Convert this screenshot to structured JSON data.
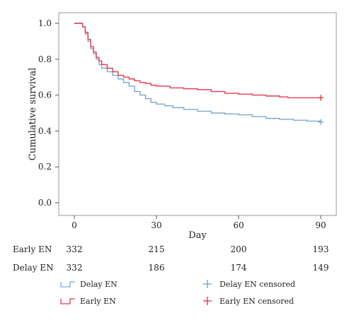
{
  "chart_data": {
    "type": "line",
    "chart_kind": "kaplan-meier",
    "xlabel": "Day",
    "ylabel": "Cumulative survival",
    "xlim": [
      0,
      90
    ],
    "ylim": [
      0,
      1.0
    ],
    "xticks": [
      0,
      30,
      60,
      90
    ],
    "yticks": [
      0.0,
      0.2,
      0.4,
      0.6,
      0.8,
      1.0
    ],
    "ytick_labels": [
      "0.0",
      "0.2",
      "0.4",
      "0.6",
      "0.8",
      "1.0"
    ],
    "grid": false,
    "series": [
      {
        "name": "Delay EN",
        "color": "#7ba7cf",
        "x": [
          0,
          3,
          4,
          5,
          6,
          7,
          8,
          9,
          10,
          12,
          14,
          16,
          18,
          20,
          22,
          24,
          26,
          28,
          30,
          33,
          36,
          40,
          45,
          50,
          55,
          60,
          65,
          70,
          75,
          80,
          85,
          90
        ],
        "y": [
          1.0,
          0.98,
          0.94,
          0.9,
          0.86,
          0.83,
          0.8,
          0.77,
          0.75,
          0.73,
          0.71,
          0.69,
          0.67,
          0.65,
          0.62,
          0.6,
          0.58,
          0.56,
          0.55,
          0.54,
          0.53,
          0.52,
          0.51,
          0.5,
          0.495,
          0.49,
          0.48,
          0.47,
          0.465,
          0.46,
          0.455,
          0.45
        ]
      },
      {
        "name": "Early EN",
        "color": "#e8394f",
        "x": [
          0,
          3,
          4,
          5,
          6,
          7,
          8,
          9,
          10,
          12,
          14,
          16,
          18,
          20,
          22,
          24,
          26,
          28,
          30,
          35,
          40,
          45,
          50,
          55,
          60,
          65,
          70,
          75,
          78,
          80,
          85,
          90
        ],
        "y": [
          1.0,
          0.98,
          0.95,
          0.91,
          0.87,
          0.84,
          0.81,
          0.79,
          0.77,
          0.75,
          0.73,
          0.71,
          0.7,
          0.69,
          0.68,
          0.67,
          0.665,
          0.655,
          0.65,
          0.64,
          0.635,
          0.63,
          0.62,
          0.61,
          0.605,
          0.6,
          0.595,
          0.59,
          0.585,
          0.585,
          0.585,
          0.585
        ]
      }
    ],
    "censored_markers": [
      {
        "name": "Delay EN censored",
        "x": 90,
        "y": 0.45,
        "color": "#7ba7cf"
      },
      {
        "name": "Early EN censored",
        "x": 90,
        "y": 0.585,
        "color": "#e8394f"
      }
    ]
  },
  "risk_table": {
    "times": [
      0,
      30,
      60,
      90
    ],
    "rows": [
      {
        "label": "Early EN",
        "values": [
          "332",
          "215",
          "200",
          "193"
        ]
      },
      {
        "label": "Delay EN",
        "values": [
          "332",
          "186",
          "174",
          "149"
        ]
      }
    ]
  },
  "legend": [
    {
      "label": "Delay EN",
      "symbol": "step",
      "color": "#7ba7cf"
    },
    {
      "label": "Delay EN censored",
      "symbol": "plus",
      "color": "#7ba7cf"
    },
    {
      "label": "Early EN",
      "symbol": "step",
      "color": "#e8394f"
    },
    {
      "label": "Early EN censored",
      "symbol": "plus",
      "color": "#e8394f"
    }
  ]
}
